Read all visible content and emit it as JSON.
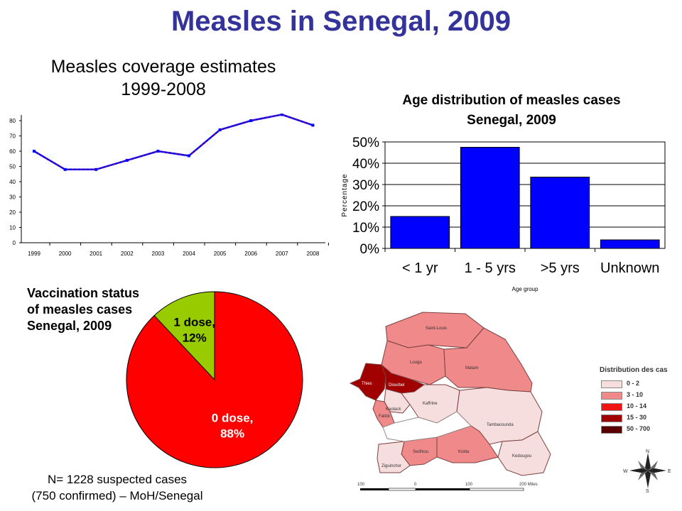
{
  "page": {
    "title": "Measles in Senegal, 2009",
    "footnote_line1": "N= 1228 suspected cases",
    "footnote_line2": "(750 confirmed) – MoH/Senegal"
  },
  "chart_data": [
    {
      "type": "line",
      "title_line1": "Measles coverage estimates",
      "title_line2": "1999-2008",
      "x": [
        "1999",
        "2000",
        "2001",
        "2002",
        "2003",
        "2004",
        "2005",
        "2006",
        "2007",
        "2008"
      ],
      "series": [
        {
          "values": [
            60,
            48,
            48,
            54,
            60,
            57,
            74,
            80,
            84,
            77
          ]
        }
      ],
      "ylim": [
        0,
        80
      ],
      "yticks": [
        0,
        10,
        20,
        30,
        40,
        50,
        60,
        70,
        80
      ],
      "colors": {
        "line": "#0000ff",
        "marker": "#ff0000"
      }
    },
    {
      "type": "bar",
      "title_line1": "Age distribution of measles cases",
      "title_line2": "Senegal, 2009",
      "categories": [
        "< 1 yr",
        "1 - 5 yrs",
        ">5 yrs",
        "Unknown"
      ],
      "values": [
        15,
        47.5,
        33.5,
        4
      ],
      "ylabel": "Percentage",
      "xlabel": "Age group",
      "ylim": [
        0,
        50
      ],
      "yticks": [
        "0%",
        "10%",
        "20%",
        "30%",
        "40%",
        "50%"
      ],
      "colors": {
        "bar": "#0000ff",
        "plot_bg": "#ffffff"
      }
    },
    {
      "type": "pie",
      "title_lines": [
        "Vaccination status",
        "of measles cases",
        "Senegal, 2009"
      ],
      "slices": [
        {
          "label_line1": "0 dose,",
          "label_line2": "88%",
          "value": 88,
          "color": "#ff0000"
        },
        {
          "label_line1": "1 dose,",
          "label_line2": "12%",
          "value": 12,
          "color": "#99cc00"
        }
      ]
    }
  ],
  "map": {
    "legend_title": "Distribution des cas",
    "legend": [
      {
        "label": "0 - 2",
        "color": "#f7dede"
      },
      {
        "label": "3 - 10",
        "color": "#f08a8a"
      },
      {
        "label": "10 - 14",
        "color": "#f01414"
      },
      {
        "label": "15 - 30",
        "color": "#a00000"
      },
      {
        "label": "50 - 700",
        "color": "#5a0000"
      }
    ],
    "regions": [
      {
        "name": "Saint-Louis",
        "cls": 1
      },
      {
        "name": "Louga",
        "cls": 1
      },
      {
        "name": "Matam",
        "cls": 1
      },
      {
        "name": "Thies",
        "cls": 3
      },
      {
        "name": "Diourbel",
        "cls": 3
      },
      {
        "name": "Kaolack",
        "cls": 0
      },
      {
        "name": "Fatick",
        "cls": 1
      },
      {
        "name": "Kaffrine",
        "cls": 0
      },
      {
        "name": "Tambacounda",
        "cls": 0
      },
      {
        "name": "Kedougou",
        "cls": 0
      },
      {
        "name": "Kolda",
        "cls": 1
      },
      {
        "name": "Sedhiou",
        "cls": 1
      },
      {
        "name": "Ziguinchor",
        "cls": 0
      }
    ],
    "scale_labels": [
      "100",
      "0",
      "100",
      "200 Miles"
    ],
    "compass": [
      "N",
      "E",
      "S",
      "W"
    ]
  }
}
